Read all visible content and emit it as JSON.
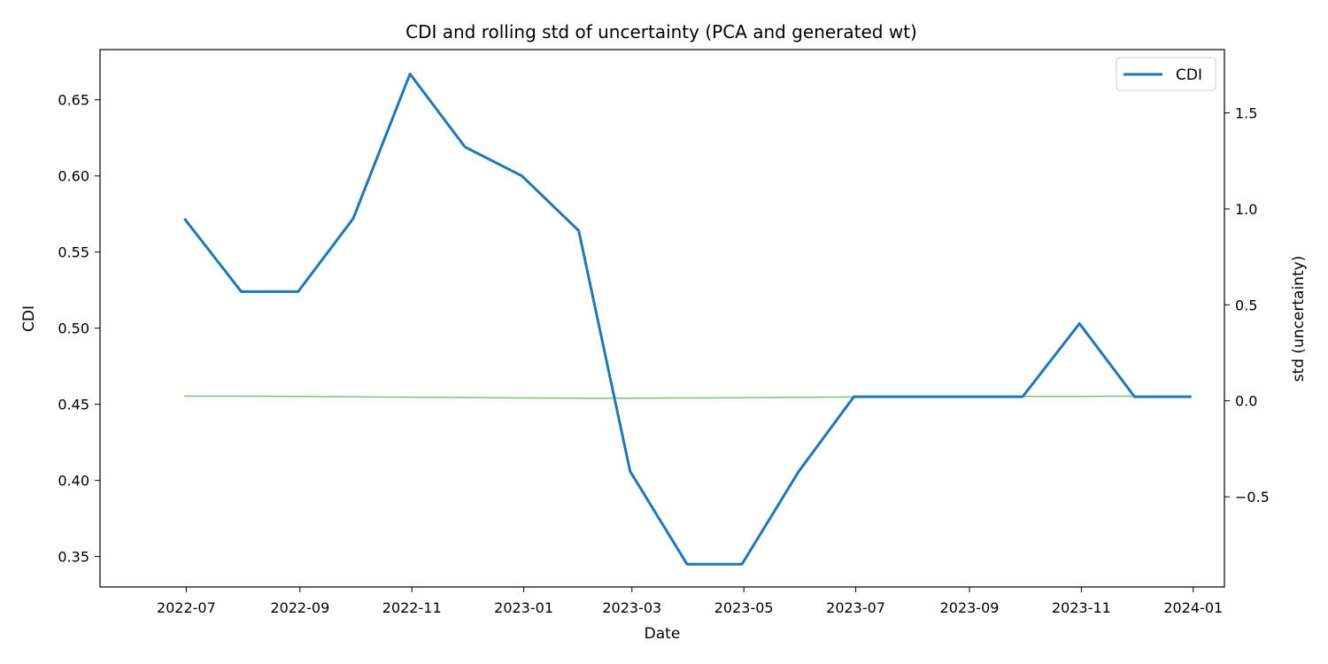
{
  "chart_data": {
    "type": "line",
    "title": "CDI and rolling std of uncertainty (PCA and generated wt)",
    "xlabel": "Date",
    "ylabel": "CDI",
    "y2label": "std (uncertainty)",
    "x_tick_labels": [
      "2022-07",
      "2022-09",
      "2022-11",
      "2023-01",
      "2023-03",
      "2023-05",
      "2023-07",
      "2023-09",
      "2023-11",
      "2024-01"
    ],
    "y_ticks": [
      "0.35",
      "0.40",
      "0.45",
      "0.50",
      "0.55",
      "0.60",
      "0.65"
    ],
    "y2_ticks": [
      "−0.5",
      "0.0",
      "0.5",
      "1.0",
      "1.5"
    ],
    "ylim": [
      0.33,
      0.683
    ],
    "y2lim": [
      -0.97,
      1.83
    ],
    "grid": false,
    "legend_position": "top-right",
    "series": [
      {
        "name": "CDI",
        "axis": "left",
        "color": "#1f77b4",
        "x": [
          "2022-06-30",
          "2022-07-31",
          "2022-08-31",
          "2022-09-30",
          "2022-10-31",
          "2022-11-30",
          "2022-12-31",
          "2023-01-31",
          "2023-02-28",
          "2023-03-31",
          "2023-04-30",
          "2023-05-31",
          "2023-06-30",
          "2023-07-31",
          "2023-08-31",
          "2023-09-30",
          "2023-10-31",
          "2023-11-30",
          "2023-12-31"
        ],
        "values": [
          0.572,
          0.524,
          0.524,
          0.572,
          0.667,
          0.619,
          0.6,
          0.564,
          0.406,
          0.345,
          0.345,
          0.406,
          0.455,
          0.455,
          0.455,
          0.455,
          0.503,
          0.455,
          0.455
        ]
      },
      {
        "axis": "right",
        "color": "#77c377",
        "x": [
          "2022-06-30",
          "2022-07-31",
          "2022-08-31",
          "2022-09-30",
          "2022-10-31",
          "2022-11-30",
          "2022-12-31",
          "2023-01-31",
          "2023-02-28",
          "2023-03-31",
          "2023-04-30",
          "2023-05-31",
          "2023-06-30",
          "2023-07-31",
          "2023-08-31",
          "2023-09-30",
          "2023-10-31",
          "2023-11-30",
          "2023-12-31"
        ],
        "values": [
          0.024,
          0.024,
          0.023,
          0.021,
          0.019,
          0.017,
          0.015,
          0.014,
          0.014,
          0.015,
          0.016,
          0.018,
          0.02,
          0.021,
          0.022,
          0.023,
          0.023,
          0.024,
          0.024
        ]
      }
    ]
  }
}
